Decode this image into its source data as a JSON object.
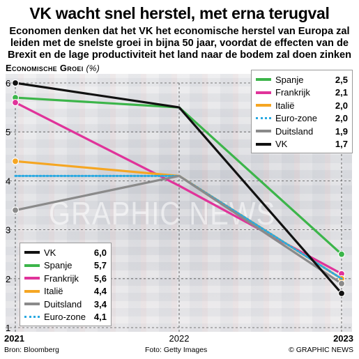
{
  "title": "VK wacht snel herstel, met erna terugval",
  "subtitle_lines": [
    "Economen denken dat het VK het economische herstel van Europa zal",
    "leiden met de snelste groei in bijna 50 jaar, voordat de effecten van de",
    "Brexit en de lage productiviteit het land naar de bodem zal doen zinken"
  ],
  "ylabel": "Economische Groei",
  "ylabel_unit": "(%)",
  "watermark": "GRAPHIC NEWS",
  "footer": {
    "source": "Bron: Bloomberg",
    "photo": "Foto: Getty Images",
    "copyright": "© GRAPHIC NEWS"
  },
  "colors": {
    "VK": "#111111",
    "Spanje": "#3cb54a",
    "Frankrijk": "#e0339a",
    "Italië": "#f5a623",
    "Duitsland": "#8a8a8a",
    "Euro-zone": "#29a9e1"
  },
  "chart_data": {
    "type": "line",
    "x": [
      "2021",
      "2022",
      "2023"
    ],
    "ylim": [
      1,
      6
    ],
    "yticks": [
      1,
      2,
      3,
      4,
      5,
      6
    ],
    "grid": true,
    "series": [
      {
        "name": "Spanje",
        "values": [
          5.7,
          5.5,
          2.5
        ],
        "dotted": false
      },
      {
        "name": "Frankrijk",
        "values": [
          5.6,
          3.9,
          2.1
        ],
        "dotted": false
      },
      {
        "name": "Italië",
        "values": [
          4.4,
          4.1,
          2.0
        ],
        "dotted": false
      },
      {
        "name": "Euro-zone",
        "values": [
          4.1,
          4.1,
          2.0
        ],
        "dotted": true
      },
      {
        "name": "Duitsland",
        "values": [
          3.4,
          4.1,
          1.9
        ],
        "dotted": false
      },
      {
        "name": "VK",
        "values": [
          6.0,
          5.5,
          1.7
        ],
        "dotted": false
      }
    ],
    "legend_2023": [
      {
        "name": "Spanje",
        "value": "2,5"
      },
      {
        "name": "Frankrijk",
        "value": "2,1"
      },
      {
        "name": "Italië",
        "value": "2,0"
      },
      {
        "name": "Euro-zone",
        "value": "2,0"
      },
      {
        "name": "Duitsland",
        "value": "1,9"
      },
      {
        "name": "VK",
        "value": "1,7"
      }
    ],
    "legend_2021": [
      {
        "name": "VK",
        "value": "6,0"
      },
      {
        "name": "Spanje",
        "value": "5,7"
      },
      {
        "name": "Frankrijk",
        "value": "5,6"
      },
      {
        "name": "Italië",
        "value": "4,4"
      },
      {
        "name": "Duitsland",
        "value": "3,4"
      },
      {
        "name": "Euro-zone",
        "value": "4,1"
      }
    ]
  }
}
